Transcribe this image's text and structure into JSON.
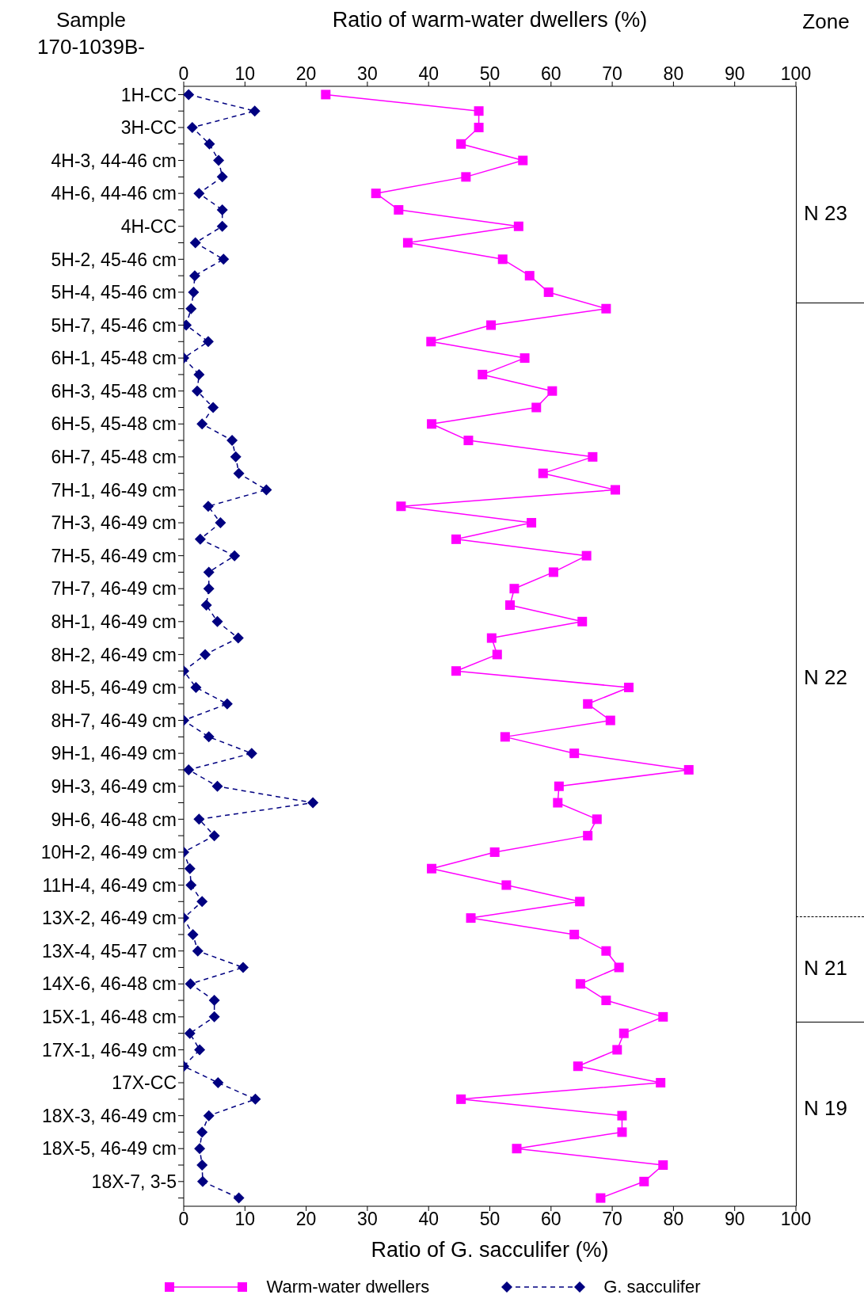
{
  "chart_data": {
    "type": "line",
    "orientation": "horizontal",
    "xlabel": "Ratio of G. sacculifer (%)",
    "x2label": "Ratio of warm-water dwellers (%)",
    "categories": [
      "1H-CC",
      null,
      "3H-CC",
      null,
      "4H-3, 44-46 cm",
      null,
      "4H-6, 44-46 cm",
      null,
      "4H-CC",
      null,
      "5H-2, 45-46 cm",
      null,
      "5H-4, 45-46 cm",
      null,
      "5H-7, 45-46 cm",
      null,
      "6H-1, 45-48 cm",
      null,
      "6H-3, 45-48 cm",
      null,
      "6H-5, 45-48 cm",
      null,
      "6H-7, 45-48 cm",
      null,
      "7H-1, 46-49 cm",
      null,
      "7H-3, 46-49 cm",
      null,
      "7H-5, 46-49 cm",
      null,
      "7H-7, 46-49 cm",
      null,
      "8H-1, 46-49 cm",
      null,
      "8H-2, 46-49 cm",
      null,
      "8H-5, 46-49 cm",
      null,
      "8H-7, 46-49 cm",
      null,
      "9H-1, 46-49 cm",
      null,
      "9H-3, 46-49 cm",
      null,
      "9H-6, 46-48 cm",
      null,
      "10H-2, 46-49 cm",
      null,
      "11H-4, 46-49 cm",
      null,
      "13X-2, 46-49 cm",
      null,
      "13X-4, 45-47 cm",
      null,
      "14X-6, 46-48 cm",
      null,
      "15X-1, 46-48 cm",
      null,
      "17X-1, 46-49 cm",
      null,
      "17X-CC",
      null,
      "18X-3, 46-49 cm",
      null,
      "18X-5, 46-49 cm",
      null,
      "18X-7, 3-5",
      null
    ],
    "series": [
      {
        "name": "Warm-water dwellers",
        "color": "#ff00ff",
        "marker": "square",
        "line_style": "solid",
        "values": [
          23.2,
          48.2,
          48.2,
          45.3,
          55.4,
          46.1,
          31.4,
          35.1,
          54.7,
          36.6,
          52.1,
          56.5,
          59.6,
          69.0,
          50.2,
          40.4,
          55.7,
          48.8,
          60.2,
          57.6,
          40.5,
          46.5,
          66.8,
          58.7,
          70.5,
          35.5,
          56.8,
          44.5,
          65.8,
          60.4,
          54.0,
          53.3,
          65.1,
          50.3,
          51.2,
          44.5,
          72.7,
          66.0,
          69.7,
          52.5,
          63.8,
          82.5,
          61.3,
          61.1,
          67.5,
          66.0,
          50.8,
          40.5,
          52.7,
          64.7,
          46.9,
          63.8,
          69.0,
          71.1,
          64.8,
          69.0,
          78.3,
          71.9,
          70.8,
          64.4,
          77.9,
          45.3,
          71.6,
          71.6,
          54.4,
          78.3,
          75.2,
          68.1
        ]
      },
      {
        "name": "G. sacculifer",
        "color": "#000080",
        "marker": "diamond",
        "line_style": "dashed",
        "values": [
          0.8,
          11.6,
          1.4,
          4.2,
          5.7,
          6.3,
          2.5,
          6.3,
          6.3,
          1.9,
          6.5,
          1.8,
          1.6,
          1.2,
          0.4,
          4.0,
          0,
          2.5,
          2.2,
          4.8,
          3.0,
          7.9,
          8.5,
          9.0,
          13.5,
          4.0,
          6.0,
          2.7,
          8.3,
          4.1,
          4.1,
          3.7,
          5.5,
          8.9,
          3.5,
          0,
          2.0,
          7.1,
          0,
          4.1,
          11.1,
          0.8,
          5.5,
          21.1,
          2.5,
          5.0,
          0,
          1.0,
          1.2,
          3.0,
          0,
          1.5,
          2.3,
          9.7,
          1.1,
          5.0,
          5.0,
          1.0,
          2.6,
          0,
          5.6,
          11.7,
          4.1,
          3.0,
          2.6,
          3.0,
          3.1,
          9.0
        ]
      }
    ],
    "xlim": [
      0,
      100
    ],
    "xticks": [
      0,
      10,
      20,
      30,
      40,
      50,
      60,
      70,
      80,
      90,
      100
    ],
    "x2lim": [
      0,
      100
    ],
    "x2ticks": [
      0,
      10,
      20,
      30,
      40,
      50,
      60,
      70,
      80,
      90,
      100
    ],
    "annotations": [
      "Sample\n170-1039B-",
      "Zone",
      "N 23",
      "N 22",
      "N 21",
      "N 19"
    ],
    "legend": "bottom"
  }
}
